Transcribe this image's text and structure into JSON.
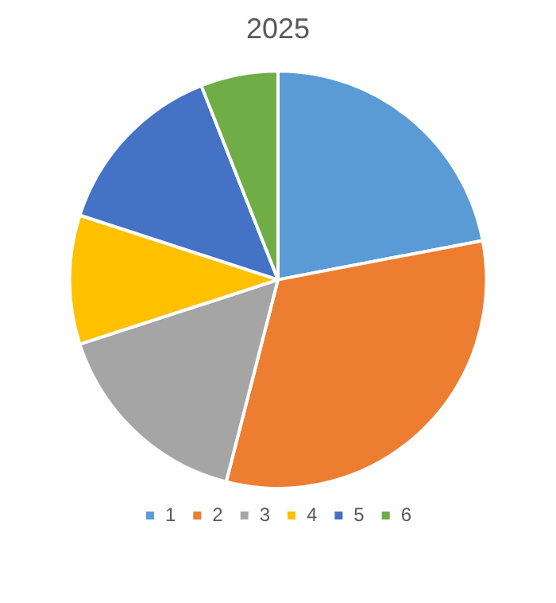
{
  "chart_data": {
    "type": "pie",
    "title": "2025",
    "categories": [
      "1",
      "2",
      "3",
      "4",
      "5",
      "6"
    ],
    "values": [
      22,
      32,
      16,
      10,
      14,
      6
    ],
    "colors": [
      "#5b9bd5",
      "#ed7d31",
      "#a5a5a5",
      "#ffc000",
      "#4472c4",
      "#70ad47"
    ],
    "legend": "bottom"
  }
}
